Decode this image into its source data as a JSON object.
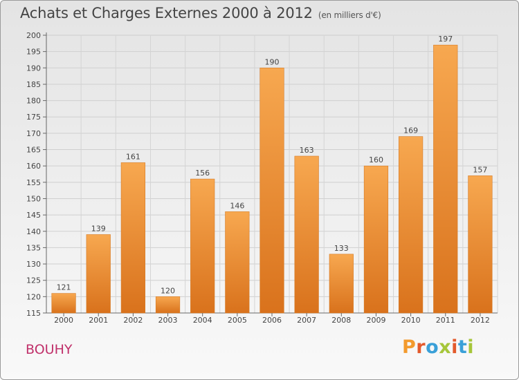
{
  "chart_data": {
    "type": "bar",
    "title": "Achats et Charges Externes 2000 à 2012",
    "subtitle": "(en milliers d'€)",
    "categories": [
      "2000",
      "2001",
      "2002",
      "2003",
      "2004",
      "2005",
      "2006",
      "2007",
      "2008",
      "2009",
      "2010",
      "2011",
      "2012"
    ],
    "values": [
      121,
      139,
      161,
      120,
      156,
      146,
      190,
      163,
      133,
      160,
      169,
      197,
      157
    ],
    "yticks": [
      115,
      120,
      125,
      130,
      135,
      140,
      145,
      150,
      155,
      160,
      165,
      170,
      175,
      180,
      185,
      190,
      195,
      200
    ],
    "ylim": [
      115,
      200
    ],
    "grid": true,
    "xlabel": "",
    "ylabel": "",
    "bar_color": "#f0933a"
  },
  "footer": {
    "commune": "BOUHY",
    "logo_text": "Proxiti",
    "logo_colors": [
      "#f39a2d",
      "#e35a2c",
      "#3aa0d8",
      "#a6c63a",
      "#e35a2c",
      "#3aa0d8",
      "#a6c63a"
    ]
  }
}
